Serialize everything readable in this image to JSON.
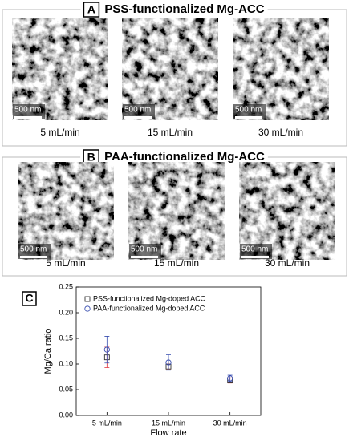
{
  "panels": [
    {
      "letter": "A",
      "title": "PSS-functionalized Mg-ACC",
      "images": [
        {
          "scale_bar": "500 nm",
          "caption": "5 mL/min"
        },
        {
          "scale_bar": "500 nm",
          "caption": "15 mL/min"
        },
        {
          "scale_bar": "500 nm",
          "caption": "30 mL/min"
        }
      ]
    },
    {
      "letter": "B",
      "title": "PAA-functionalized Mg-ACC",
      "images": [
        {
          "scale_bar": "500 nm",
          "caption": "5 mL/min"
        },
        {
          "scale_bar": "500 nm",
          "caption": "15 mL/min"
        },
        {
          "scale_bar": "500 nm",
          "caption": "30 mL/min"
        }
      ]
    }
  ],
  "chart_data": {
    "type": "errorbar",
    "panel_letter": "C",
    "xlabel": "Flow rate",
    "ylabel": "Mg/Ca ratio",
    "categories": [
      "5 mL/min",
      "15 mL/min",
      "30 mL/min"
    ],
    "ylim": [
      0,
      0.25
    ],
    "yticks": [
      {
        "value": 0,
        "label": "0.00"
      },
      {
        "value": 0.05,
        "label": "0.05"
      },
      {
        "value": 0.1,
        "label": "0.10"
      },
      {
        "value": 0.15,
        "label": "0.15"
      },
      {
        "value": 0.2,
        "label": "0.20"
      },
      {
        "value": 0.25,
        "label": "0.25"
      }
    ],
    "legend": "top-left",
    "series": [
      {
        "name": "PSS-functionalized Mg-doped ACC",
        "marker": "square",
        "color": "#333333",
        "error_color": "#e0303a",
        "values": [
          0.113,
          0.095,
          0.068
        ],
        "errors": [
          0.02,
          0.005,
          0.005
        ]
      },
      {
        "name": "PAA-functionalized Mg-doped ACC",
        "marker": "circle",
        "color": "#3a4fb0",
        "error_color": "#3a4fb0",
        "values": [
          0.128,
          0.103,
          0.072
        ],
        "errors": [
          0.026,
          0.015,
          0.006
        ]
      }
    ]
  }
}
